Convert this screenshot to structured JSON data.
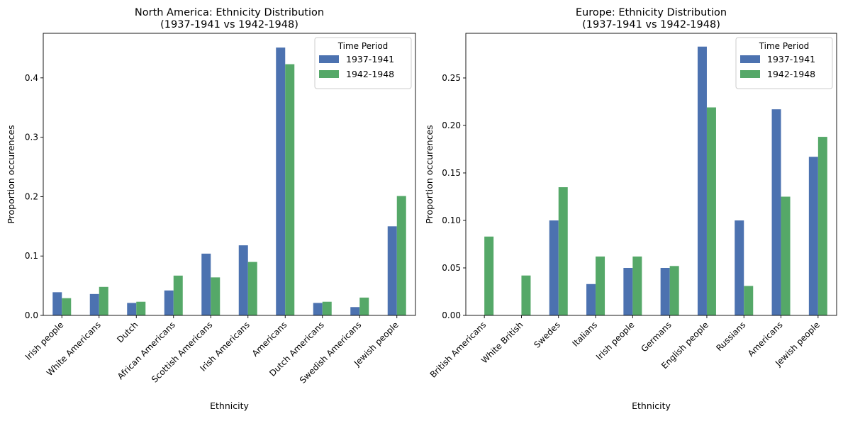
{
  "colors": {
    "series_1": "#4C72B0",
    "series_2": "#55A868"
  },
  "chart_data": [
    {
      "type": "bar",
      "title_line1": "North America: Ethnicity Distribution",
      "title_line2": "(1937-1941 vs 1942-1948)",
      "xlabel": "Ethnicity",
      "ylabel": "Proportion occurences",
      "ylim": [
        0,
        0.475
      ],
      "yticks": [
        0.0,
        0.1,
        0.2,
        0.3,
        0.4
      ],
      "ytick_labels": [
        "0.0",
        "0.1",
        "0.2",
        "0.3",
        "0.4"
      ],
      "legend_title": "Time Period",
      "legend_position": "top-right",
      "grid": false,
      "categories": [
        "Irish people",
        "White Americans",
        "Dutch",
        "African Americans",
        "Scottish Americans",
        "Irish Americans",
        "Americans",
        "Dutch Americans",
        "Swedish Americans",
        "Jewish people"
      ],
      "series": [
        {
          "name": "1937-1941",
          "values": [
            0.039,
            0.036,
            0.021,
            0.042,
            0.104,
            0.118,
            0.451,
            0.021,
            0.014,
            0.15
          ]
        },
        {
          "name": "1942-1948",
          "values": [
            0.029,
            0.048,
            0.023,
            0.067,
            0.064,
            0.09,
            0.423,
            0.023,
            0.03,
            0.201
          ]
        }
      ]
    },
    {
      "type": "bar",
      "title_line1": "Europe: Ethnicity Distribution",
      "title_line2": "(1937-1941 vs 1942-1948)",
      "xlabel": "Ethnicity",
      "ylabel": "Proportion occurences",
      "ylim": [
        0,
        0.297
      ],
      "yticks": [
        0.0,
        0.05,
        0.1,
        0.15,
        0.2,
        0.25
      ],
      "ytick_labels": [
        "0.00",
        "0.05",
        "0.10",
        "0.15",
        "0.20",
        "0.25"
      ],
      "legend_title": "Time Period",
      "legend_position": "top-right",
      "grid": false,
      "categories": [
        "British Americans",
        "White British",
        "Swedes",
        "Italians",
        "Irish people",
        "Germans",
        "English people",
        "Russians",
        "Americans",
        "Jewish people"
      ],
      "series": [
        {
          "name": "1937-1941",
          "values": [
            0.0,
            0.0,
            0.1,
            0.033,
            0.05,
            0.05,
            0.283,
            0.1,
            0.217,
            0.167
          ]
        },
        {
          "name": "1942-1948",
          "values": [
            0.083,
            0.042,
            0.135,
            0.062,
            0.062,
            0.052,
            0.219,
            0.031,
            0.125,
            0.188
          ]
        }
      ]
    }
  ]
}
